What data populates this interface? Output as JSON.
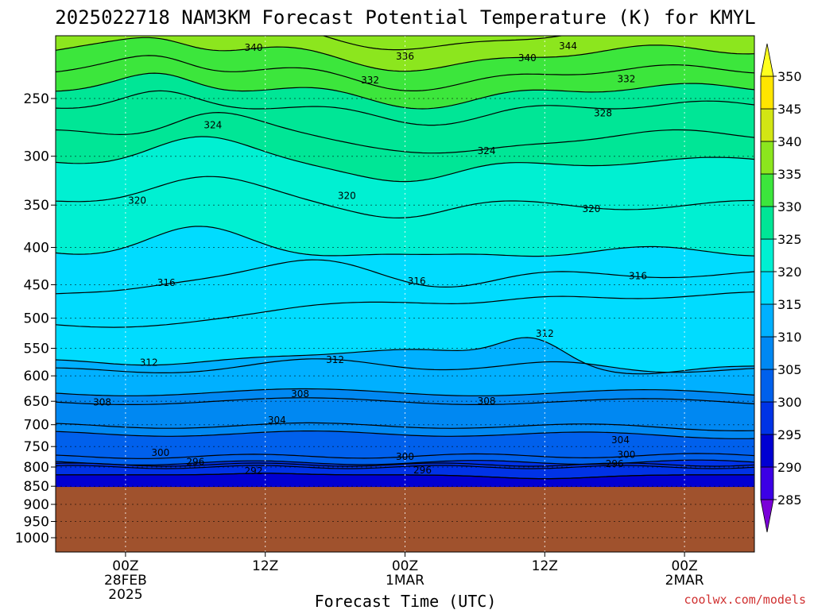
{
  "chart_data": {
    "type": "heatmap",
    "title": "2025022718 NAM3KM Forecast Potential Temperature (K) for KMYL",
    "xlabel": "Forecast Time (UTC)",
    "ylabel": "",
    "y_scale": "log",
    "y_inverted": true,
    "y_ticks": [
      250,
      300,
      350,
      400,
      450,
      500,
      550,
      600,
      650,
      700,
      750,
      800,
      850,
      900,
      950,
      1000
    ],
    "y_tick_labels": [
      "250",
      "300",
      "350",
      "400",
      "450",
      "500",
      "550",
      "600",
      "650",
      "700",
      "750",
      "800",
      "850",
      "900",
      "950",
      "1000"
    ],
    "x_range_hours": [
      -6,
      54
    ],
    "x_ticks": [
      {
        "hour": 0,
        "lines": [
          "00Z",
          "28FEB",
          "2025"
        ]
      },
      {
        "hour": 12,
        "lines": [
          "12Z"
        ]
      },
      {
        "hour": 24,
        "lines": [
          "00Z",
          "1MAR"
        ]
      },
      {
        "hour": 36,
        "lines": [
          "12Z"
        ]
      },
      {
        "hour": 48,
        "lines": [
          "00Z",
          "2MAR"
        ]
      }
    ],
    "colorbar": {
      "levels": [
        285,
        290,
        295,
        300,
        305,
        310,
        315,
        320,
        325,
        330,
        335,
        340,
        345,
        350
      ],
      "labels": [
        "285",
        "290",
        "295",
        "300",
        "305",
        "310",
        "315",
        "320",
        "325",
        "330",
        "335",
        "340",
        "345",
        "350"
      ],
      "colors": [
        "#7a00d8",
        "#3c00e6",
        "#0000d2",
        "#0033e6",
        "#0060ec",
        "#0088f2",
        "#00b0ff",
        "#00dcff",
        "#00f0d2",
        "#00e696",
        "#3ce63c",
        "#8ce61e",
        "#d2e614",
        "#ffe600",
        "#ffff1e"
      ]
    },
    "contour_interval": 2,
    "contour_labels": [
      {
        "value": "340",
        "hour": 11,
        "pres": 213
      },
      {
        "value": "336",
        "hour": 24,
        "pres": 219
      },
      {
        "value": "340",
        "hour": 34.5,
        "pres": 220
      },
      {
        "value": "344",
        "hour": 38,
        "pres": 212
      },
      {
        "value": "332",
        "hour": 21,
        "pres": 236
      },
      {
        "value": "332",
        "hour": 43,
        "pres": 235
      },
      {
        "value": "328",
        "hour": 41,
        "pres": 262
      },
      {
        "value": "324",
        "hour": 7.5,
        "pres": 272
      },
      {
        "value": "324",
        "hour": 31,
        "pres": 295
      },
      {
        "value": "320",
        "hour": 1,
        "pres": 345
      },
      {
        "value": "320",
        "hour": 19,
        "pres": 340
      },
      {
        "value": "320",
        "hour": 40,
        "pres": 354
      },
      {
        "value": "316",
        "hour": 3.5,
        "pres": 447
      },
      {
        "value": "316",
        "hour": 25,
        "pres": 445
      },
      {
        "value": "316",
        "hour": 44,
        "pres": 438
      },
      {
        "value": "312",
        "hour": 36,
        "pres": 525
      },
      {
        "value": "312",
        "hour": 2,
        "pres": 575
      },
      {
        "value": "312",
        "hour": 18,
        "pres": 570
      },
      {
        "value": "308",
        "hour": -2,
        "pres": 652
      },
      {
        "value": "308",
        "hour": 15,
        "pres": 635
      },
      {
        "value": "308",
        "hour": 31,
        "pres": 650
      },
      {
        "value": "304",
        "hour": 13,
        "pres": 690
      },
      {
        "value": "304",
        "hour": 42.5,
        "pres": 735
      },
      {
        "value": "300",
        "hour": 3,
        "pres": 765
      },
      {
        "value": "300",
        "hour": 24,
        "pres": 774
      },
      {
        "value": "300",
        "hour": 43,
        "pres": 770
      },
      {
        "value": "296",
        "hour": 6,
        "pres": 787
      },
      {
        "value": "296",
        "hour": 25.5,
        "pres": 808
      },
      {
        "value": "296",
        "hour": 42,
        "pres": 792
      },
      {
        "value": "292",
        "hour": 11,
        "pres": 810
      }
    ]
  },
  "credit": "coolwx.com/models"
}
